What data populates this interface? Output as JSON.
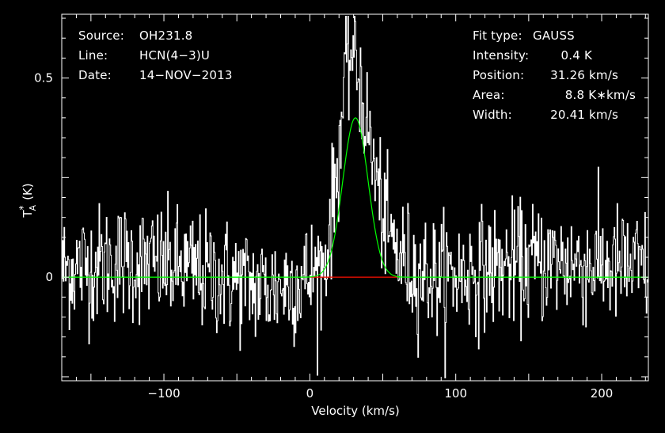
{
  "header_left": {
    "rows": [
      {
        "label": "Source:",
        "value": "OH231.8"
      },
      {
        "label": "Line:",
        "value": "HCN(4−3)U"
      },
      {
        "label": "Date:",
        "value": "14−NOV−2013"
      }
    ]
  },
  "header_right": {
    "rows": [
      {
        "label": "Fit type:",
        "value": "GAUSS"
      },
      {
        "label": "Intensity:",
        "value": "0.4 K"
      },
      {
        "label": "Position:",
        "value": "31.26 km/s"
      },
      {
        "label": "Area:",
        "value": "8.8 K∗km/s"
      },
      {
        "label": "Width:",
        "value": "20.41 km/s"
      }
    ]
  },
  "chart_data": {
    "type": "line",
    "xlabel": "Velocity (km/s)",
    "ylabel": "T*A (K)",
    "ylabel_parts": {
      "main": "T",
      "sup": "*",
      "sub": "A",
      "unit": "(K)"
    },
    "xlim": [
      -170,
      232
    ],
    "ylim": [
      -0.26,
      0.66
    ],
    "x_ticks": [
      -100,
      0,
      100,
      200
    ],
    "x_tick_labels": [
      "−100",
      "0",
      "100",
      "200"
    ],
    "y_ticks": [
      0,
      0.5
    ],
    "y_tick_labels": [
      "0",
      "0.5"
    ],
    "x_minor_step": 10,
    "y_minor_step": 0.05,
    "series": [
      {
        "role": "spectrum",
        "color": "#ffffff",
        "style": "histogram",
        "channel_width_kmps": 0.5,
        "noise_rms_K": 0.075,
        "profile_envelope": {
          "x": [
            -170,
            -130,
            -100,
            -60,
            -30,
            0,
            10,
            18,
            24,
            28,
            31,
            34,
            38,
            45,
            52,
            60,
            70,
            90,
            120,
            160,
            200,
            232
          ],
          "y": [
            0.02,
            0.04,
            0.03,
            0.0,
            -0.03,
            0.0,
            0.03,
            0.25,
            0.5,
            0.57,
            0.55,
            0.5,
            0.4,
            0.25,
            0.12,
            0.06,
            0.02,
            0.0,
            0.02,
            0.04,
            0.03,
            0.02
          ]
        }
      },
      {
        "role": "gaussian-fit",
        "color": "#00ff00",
        "amplitude_K": 0.4,
        "center_kmps": 31.26,
        "fwhm_kmps": 20.41
      }
    ],
    "baseline": {
      "y": 0,
      "color": "#00ff00"
    },
    "fit_window": {
      "x": [
        0,
        60
      ],
      "color": "#ff0000"
    }
  },
  "colors": {
    "background": "#000000",
    "axes": "#ffffff",
    "fit": "#00ff00",
    "window": "#ff0000"
  }
}
